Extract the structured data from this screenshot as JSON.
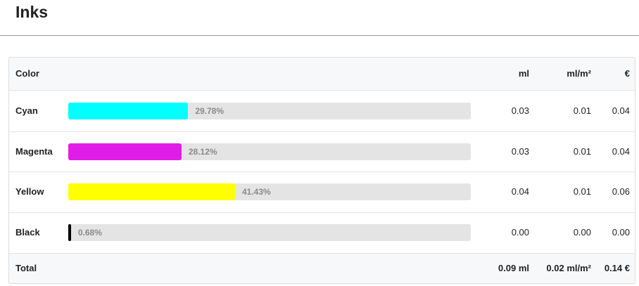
{
  "header": {
    "title": "Inks"
  },
  "table": {
    "columns": [
      "Color",
      "ml",
      "ml/m²",
      "€"
    ],
    "rows": [
      {
        "name": "Cyan",
        "color": "#00ffff",
        "percent": 29.78,
        "percent_label": "29.78%",
        "ml": "0.03",
        "ml_m2": "0.01",
        "eur": "0.04"
      },
      {
        "name": "Magenta",
        "color": "#e01ce8",
        "percent": 28.12,
        "percent_label": "28.12%",
        "ml": "0.03",
        "ml_m2": "0.01",
        "eur": "0.04"
      },
      {
        "name": "Yellow",
        "color": "#ffff00",
        "percent": 41.43,
        "percent_label": "41.43%",
        "ml": "0.04",
        "ml_m2": "0.01",
        "eur": "0.06"
      },
      {
        "name": "Black",
        "color": "#000000",
        "percent": 0.68,
        "percent_label": "0.68%",
        "ml": "0.00",
        "ml_m2": "0.00",
        "eur": "0.00"
      }
    ],
    "total": {
      "label": "Total",
      "ml": "0.09 ml",
      "ml_m2": "0.02 ml/m²",
      "eur": "0.14 €"
    }
  }
}
